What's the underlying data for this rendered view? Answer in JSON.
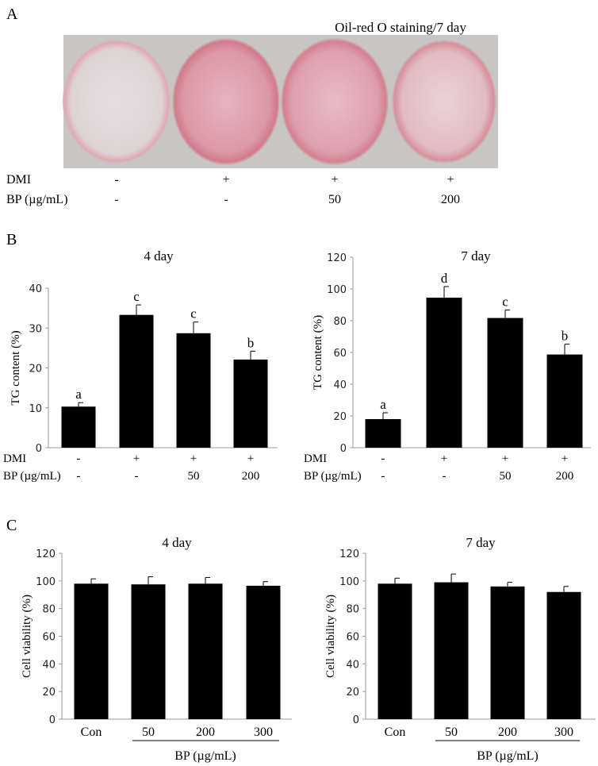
{
  "panel_a": {
    "letter": "A",
    "title": "Oil-red O staining/7 day",
    "row_labels": [
      "DMI",
      "BP (µg/mL)"
    ],
    "dmi": [
      "-",
      "+",
      "+",
      "+"
    ],
    "bp": [
      "-",
      "-",
      "50",
      "200"
    ],
    "dish_stain_levels": [
      "none",
      "strong",
      "strong",
      "medium"
    ],
    "colors": {
      "stain": "#d98a98",
      "background": "#c8c8c6"
    }
  },
  "panel_b_letter": "B",
  "panel_c_letter": "C",
  "chart_data": [
    {
      "type": "bar",
      "panel": "B",
      "title": "4 day",
      "ylabel": "TG content (%)",
      "ylim": [
        0,
        40
      ],
      "yticks": [
        0,
        10,
        20,
        30,
        40
      ],
      "row_labels": [
        "DMI",
        "BP (µg/mL)"
      ],
      "dmi": [
        "-",
        "+",
        "+",
        "+"
      ],
      "bp": [
        "-",
        "-",
        "50",
        "200"
      ],
      "values": [
        10.3,
        33.3,
        28.7,
        22.1
      ],
      "errors": [
        1.0,
        2.5,
        2.8,
        2.1
      ],
      "letters": [
        "a",
        "c",
        "c",
        "b"
      ],
      "color": "#000000",
      "grid": false
    },
    {
      "type": "bar",
      "panel": "B",
      "title": "7 day",
      "ylabel": "TG content (%)",
      "ylim": [
        0,
        120
      ],
      "yticks": [
        0,
        20,
        40,
        60,
        80,
        100,
        120
      ],
      "row_labels": [
        "DMI",
        "BP (µg/mL)"
      ],
      "dmi": [
        "-",
        "+",
        "+",
        "+"
      ],
      "bp": [
        "-",
        "-",
        "50",
        "200"
      ],
      "values": [
        18.0,
        94.5,
        81.7,
        58.7
      ],
      "errors": [
        4.0,
        7.0,
        5.0,
        6.5
      ],
      "letters": [
        "a",
        "d",
        "c",
        "b"
      ],
      "color": "#000000",
      "grid": false
    },
    {
      "type": "bar",
      "panel": "C",
      "title": "4 day",
      "ylabel": "Cell viability (%)",
      "ylim": [
        0,
        120
      ],
      "yticks": [
        0,
        20,
        40,
        60,
        80,
        100,
        120
      ],
      "categories": [
        "Con",
        "50",
        "200",
        "300"
      ],
      "group_label": "BP (µg/mL)",
      "values": [
        98.0,
        97.5,
        98.0,
        96.5
      ],
      "errors": [
        3.5,
        5.5,
        4.5,
        3.0
      ],
      "color": "#000000",
      "grid": false
    },
    {
      "type": "bar",
      "panel": "C",
      "title": "7 day",
      "ylabel": "Cell viability (%)",
      "ylim": [
        0,
        120
      ],
      "yticks": [
        0,
        20,
        40,
        60,
        80,
        100,
        120
      ],
      "categories": [
        "Con",
        "50",
        "200",
        "300"
      ],
      "group_label": "BP (µg/mL)",
      "values": [
        98.0,
        99.0,
        96.0,
        92.0
      ],
      "errors": [
        4.0,
        6.0,
        3.0,
        4.0
      ],
      "color": "#000000",
      "grid": false
    }
  ]
}
